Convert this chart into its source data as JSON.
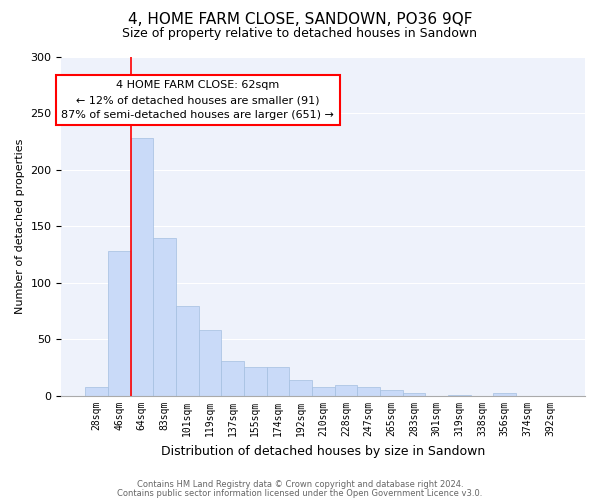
{
  "title": "4, HOME FARM CLOSE, SANDOWN, PO36 9QF",
  "subtitle": "Size of property relative to detached houses in Sandown",
  "xlabel": "Distribution of detached houses by size in Sandown",
  "ylabel": "Number of detached properties",
  "categories": [
    "28sqm",
    "46sqm",
    "64sqm",
    "83sqm",
    "101sqm",
    "119sqm",
    "137sqm",
    "155sqm",
    "174sqm",
    "192sqm",
    "210sqm",
    "228sqm",
    "247sqm",
    "265sqm",
    "283sqm",
    "301sqm",
    "319sqm",
    "338sqm",
    "356sqm",
    "374sqm",
    "392sqm"
  ],
  "values": [
    8,
    128,
    228,
    140,
    80,
    58,
    31,
    26,
    26,
    14,
    8,
    10,
    8,
    5,
    3,
    0,
    1,
    0,
    3,
    0,
    0
  ],
  "bar_color": "#c9daf8",
  "bar_edge_color": "#a4bfe0",
  "annotation_text": "4 HOME FARM CLOSE: 62sqm\n← 12% of detached houses are smaller (91)\n87% of semi-detached houses are larger (651) →",
  "annotation_box_color": "white",
  "annotation_box_edge_color": "red",
  "vline_color": "red",
  "vline_x": 1.5,
  "ylim": [
    0,
    300
  ],
  "yticks": [
    0,
    50,
    100,
    150,
    200,
    250,
    300
  ],
  "footer1": "Contains HM Land Registry data © Crown copyright and database right 2024.",
  "footer2": "Contains public sector information licensed under the Open Government Licence v3.0.",
  "bg_color": "#eef2fb",
  "title_fontsize": 11,
  "subtitle_fontsize": 9,
  "xlabel_fontsize": 9,
  "ylabel_fontsize": 8,
  "tick_fontsize": 7,
  "annot_fontsize": 8
}
